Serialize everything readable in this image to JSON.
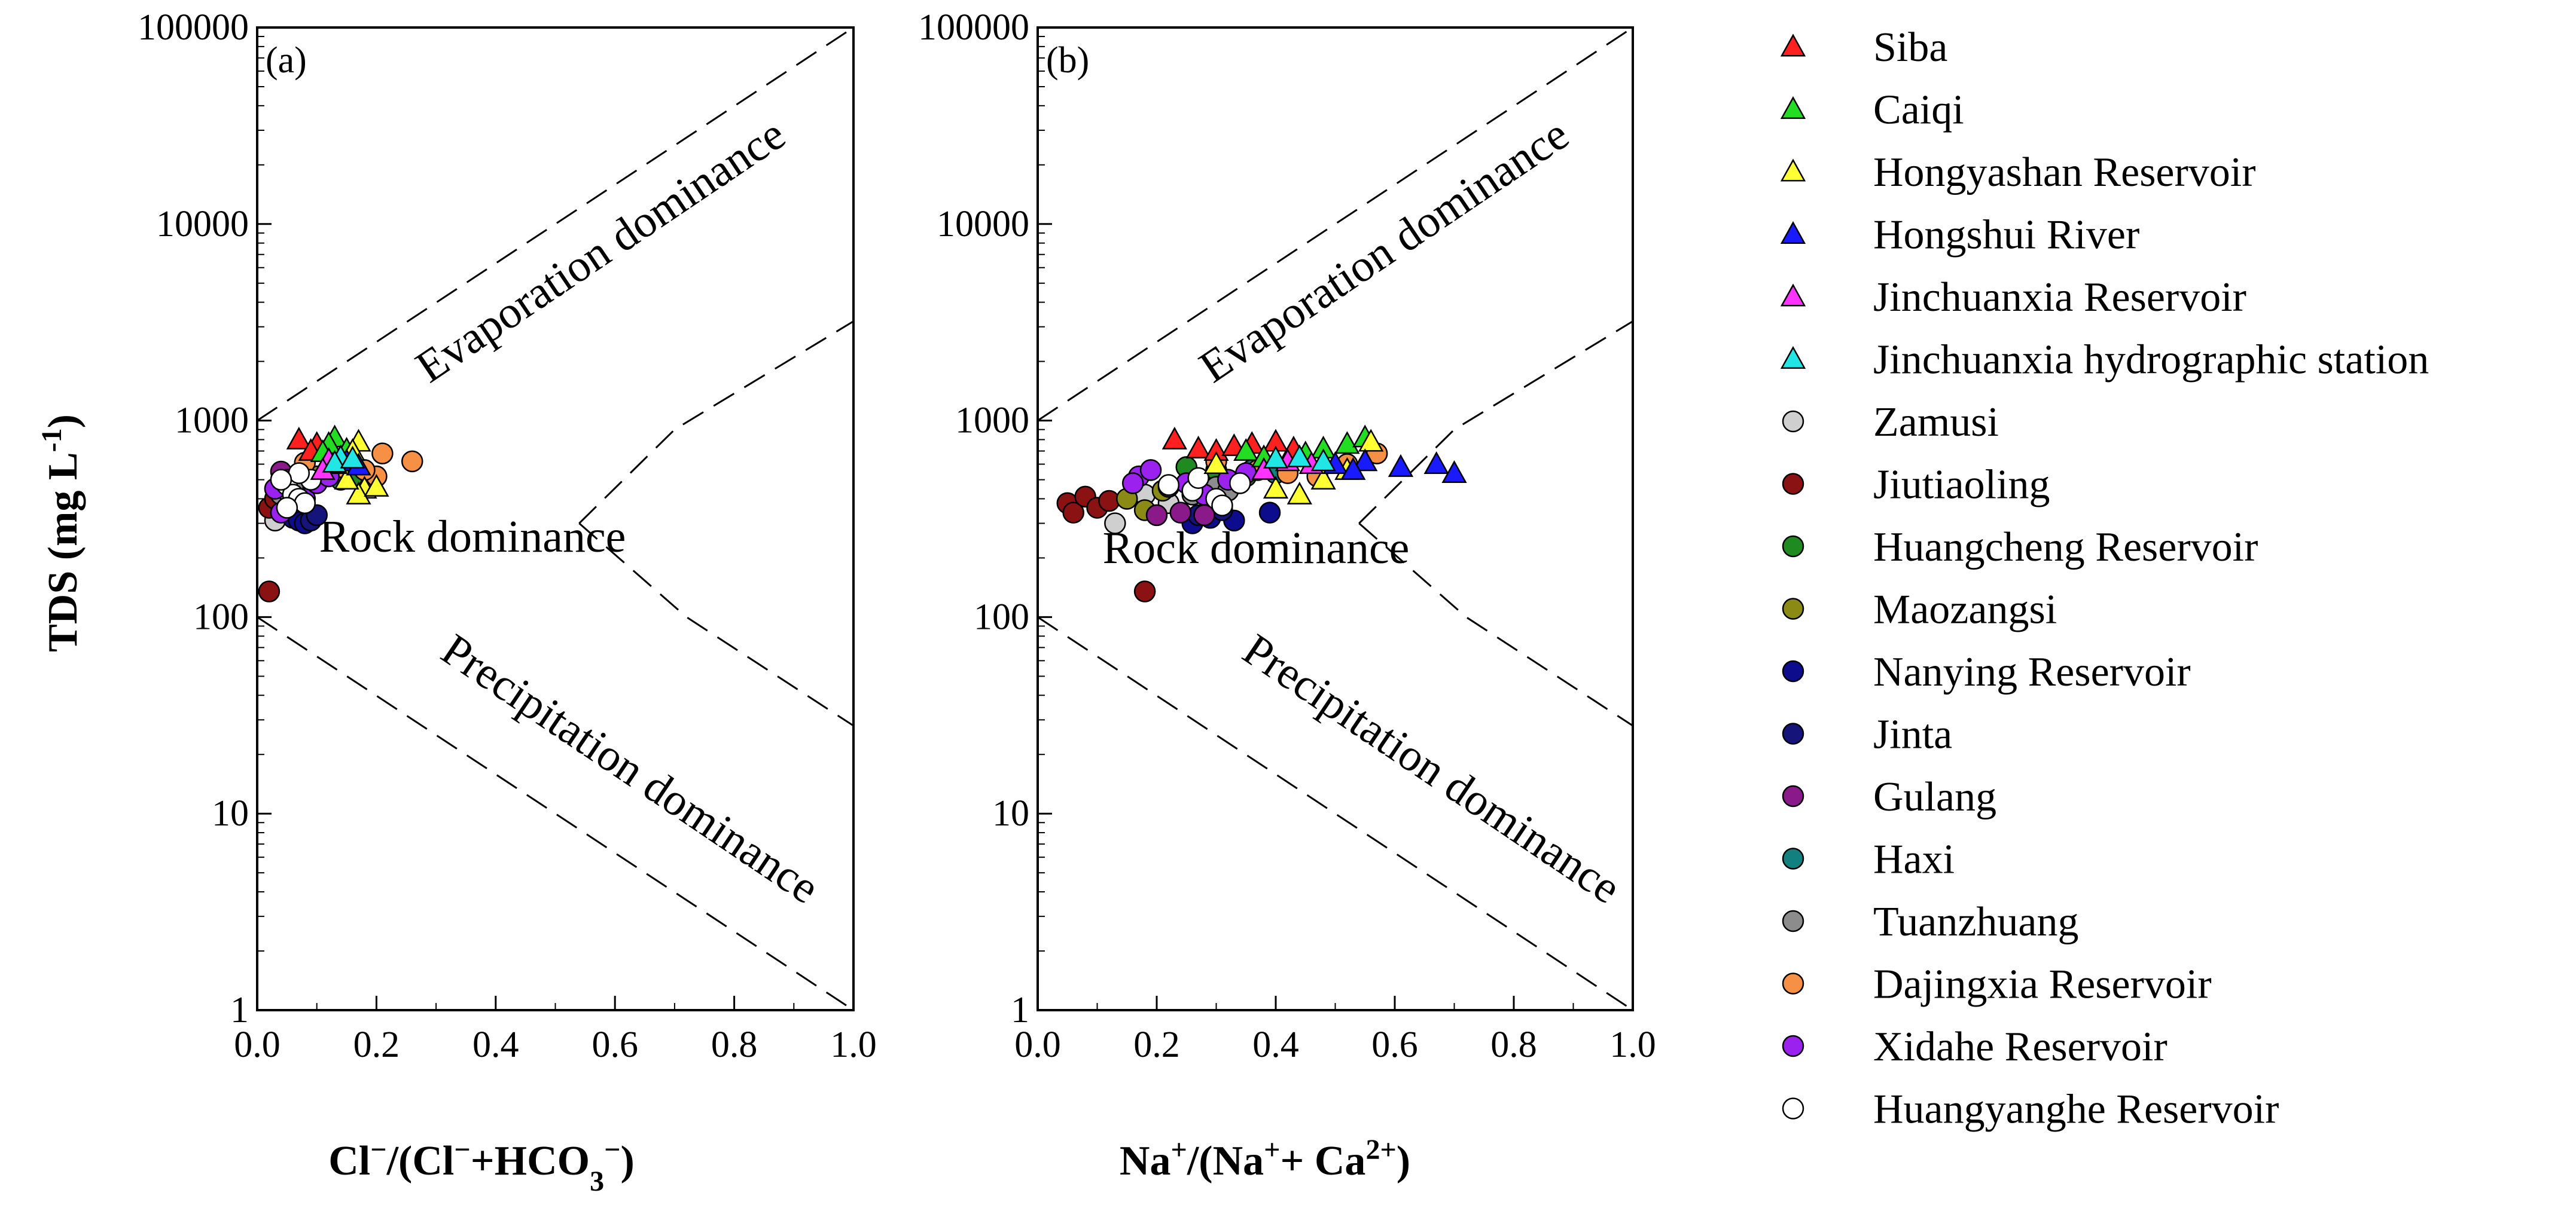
{
  "chart_data": [
    {
      "type": "scatter",
      "panel_label": "(a)",
      "xlabel": "Cl⁻/(Cl⁻+HCO₃⁻)",
      "ylabel": "TDS (mg L⁻¹)",
      "xlim": [
        0,
        1
      ],
      "ylim": [
        1,
        100000
      ],
      "yscale": "log",
      "x_ticks": [
        "0.0",
        "0.2",
        "0.4",
        "0.6",
        "0.8",
        "1.0"
      ],
      "y_ticks": [
        "1",
        "10",
        "100",
        "1000",
        "10000",
        "100000"
      ],
      "annotations": [
        "Evaporation dominance",
        "Rock dominance",
        "Precipitation dominance"
      ],
      "series": [
        {
          "name": "Siba",
          "points": [
            [
              0.07,
              800
            ],
            [
              0.1,
              760
            ],
            [
              0.12,
              720
            ],
            [
              0.15,
              690
            ],
            [
              0.09,
              700
            ],
            [
              0.13,
              650
            ]
          ]
        },
        {
          "name": "Caiqi",
          "points": [
            [
              0.13,
              820
            ],
            [
              0.12,
              760
            ],
            [
              0.15,
              710
            ],
            [
              0.11,
              690
            ]
          ]
        },
        {
          "name": "Hongyashan Reservoir",
          "points": [
            [
              0.17,
              780
            ],
            [
              0.16,
              700
            ],
            [
              0.18,
              450
            ],
            [
              0.17,
              420
            ],
            [
              0.2,
              460
            ],
            [
              0.15,
              500
            ]
          ]
        },
        {
          "name": "Hongshui River",
          "points": [
            [
              0.15,
              620
            ],
            [
              0.17,
              590
            ]
          ]
        },
        {
          "name": "Jinchuanxia Reservoir",
          "points": [
            [
              0.12,
              630
            ],
            [
              0.13,
              600
            ],
            [
              0.11,
              560
            ]
          ]
        },
        {
          "name": "Jinchuanxia hydrographic station",
          "points": [
            [
              0.14,
              650
            ],
            [
              0.13,
              610
            ],
            [
              0.16,
              640
            ]
          ]
        },
        {
          "name": "Zamusi",
          "points": [
            [
              0.03,
              310
            ],
            [
              0.04,
              350
            ],
            [
              0.05,
              380
            ]
          ]
        },
        {
          "name": "Jiutiaoling",
          "points": [
            [
              0.02,
              135
            ],
            [
              0.02,
              360
            ],
            [
              0.03,
              400
            ]
          ]
        },
        {
          "name": "Huangcheng Reservoir",
          "points": [
            [
              0.14,
              560
            ],
            [
              0.13,
              530
            ],
            [
              0.16,
              520
            ]
          ]
        },
        {
          "name": "Maozangsi",
          "points": [
            [
              0.1,
              520
            ],
            [
              0.08,
              480
            ]
          ]
        },
        {
          "name": "Nanying Reservoir",
          "points": [
            [
              0.06,
              320
            ],
            [
              0.07,
              310
            ],
            [
              0.09,
              330
            ],
            [
              0.08,
              300
            ]
          ]
        },
        {
          "name": "Jinta",
          "points": [
            [
              0.09,
              310
            ],
            [
              0.1,
              330
            ]
          ]
        },
        {
          "name": "Gulang",
          "points": [
            [
              0.04,
              550
            ],
            [
              0.05,
              500
            ]
          ]
        },
        {
          "name": "Haxi",
          "points": [
            [
              0.12,
              540
            ],
            [
              0.14,
              500
            ]
          ]
        },
        {
          "name": "Tuanzhuang",
          "points": [
            [
              0.04,
              420
            ],
            [
              0.06,
              460
            ],
            [
              0.05,
              440
            ]
          ]
        },
        {
          "name": "Dajingxia Reservoir",
          "points": [
            [
              0.21,
              680
            ],
            [
              0.26,
              620
            ],
            [
              0.2,
              520
            ],
            [
              0.18,
              560
            ],
            [
              0.08,
              610
            ],
            [
              0.14,
              580
            ]
          ]
        },
        {
          "name": "Xidahe Reservoir",
          "points": [
            [
              0.04,
              340
            ],
            [
              0.06,
              380
            ],
            [
              0.08,
              400
            ],
            [
              0.1,
              480
            ],
            [
              0.12,
              520
            ],
            [
              0.03,
              450
            ]
          ]
        },
        {
          "name": "Huangyanghe Reservoir",
          "points": [
            [
              0.05,
              470
            ],
            [
              0.06,
              420
            ],
            [
              0.07,
              400
            ],
            [
              0.08,
              380
            ],
            [
              0.05,
              360
            ],
            [
              0.09,
              500
            ],
            [
              0.07,
              540
            ],
            [
              0.04,
              500
            ]
          ]
        }
      ]
    },
    {
      "type": "scatter",
      "panel_label": "(b)",
      "xlabel": "Na⁺/(Na⁺+ Ca²⁺)",
      "ylabel": "",
      "xlim": [
        0,
        1
      ],
      "ylim": [
        1,
        100000
      ],
      "yscale": "log",
      "x_ticks": [
        "0.0",
        "0.2",
        "0.4",
        "0.6",
        "0.8",
        "1.0"
      ],
      "y_ticks": [
        "1",
        "10",
        "100",
        "1000",
        "10000",
        "100000"
      ],
      "annotations": [
        "Evaporation dominance",
        "Rock dominance",
        "Precipitation dominance"
      ],
      "series": [
        {
          "name": "Siba",
          "points": [
            [
              0.23,
              800
            ],
            [
              0.27,
              720
            ],
            [
              0.3,
              700
            ],
            [
              0.33,
              740
            ],
            [
              0.36,
              760
            ],
            [
              0.4,
              780
            ],
            [
              0.43,
              720
            ]
          ]
        },
        {
          "name": "Caiqi",
          "points": [
            [
              0.35,
              700
            ],
            [
              0.38,
              650
            ],
            [
              0.45,
              680
            ],
            [
              0.48,
              720
            ],
            [
              0.52,
              760
            ],
            [
              0.55,
              820
            ]
          ]
        },
        {
          "name": "Hongyashan Reservoir",
          "points": [
            [
              0.4,
              450
            ],
            [
              0.44,
              420
            ],
            [
              0.48,
              500
            ],
            [
              0.52,
              560
            ],
            [
              0.56,
              780
            ],
            [
              0.3,
              600
            ]
          ]
        },
        {
          "name": "Hongshui River",
          "points": [
            [
              0.55,
              620
            ],
            [
              0.61,
              580
            ],
            [
              0.67,
              600
            ],
            [
              0.7,
              540
            ],
            [
              0.5,
              600
            ],
            [
              0.53,
              560
            ]
          ]
        },
        {
          "name": "Jinchuanxia Reservoir",
          "points": [
            [
              0.42,
              620
            ],
            [
              0.46,
              600
            ],
            [
              0.38,
              560
            ]
          ]
        },
        {
          "name": "Jinchuanxia hydrographic station",
          "points": [
            [
              0.44,
              650
            ],
            [
              0.48,
              620
            ],
            [
              0.4,
              640
            ]
          ]
        },
        {
          "name": "Zamusi",
          "points": [
            [
              0.13,
              300
            ],
            [
              0.18,
              420
            ],
            [
              0.22,
              380
            ]
          ]
        },
        {
          "name": "Jiutiaoling",
          "points": [
            [
              0.05,
              380
            ],
            [
              0.06,
              340
            ],
            [
              0.08,
              410
            ],
            [
              0.1,
              360
            ],
            [
              0.12,
              390
            ],
            [
              0.18,
              135
            ]
          ]
        },
        {
          "name": "Huangcheng Reservoir",
          "points": [
            [
              0.25,
              580
            ],
            [
              0.3,
              560
            ],
            [
              0.35,
              520
            ]
          ]
        },
        {
          "name": "Maozangsi",
          "points": [
            [
              0.15,
              400
            ],
            [
              0.18,
              350
            ],
            [
              0.21,
              440
            ]
          ]
        },
        {
          "name": "Nanying Reservoir",
          "points": [
            [
              0.29,
              320
            ],
            [
              0.33,
              310
            ],
            [
              0.39,
              340
            ],
            [
              0.26,
              300
            ]
          ]
        },
        {
          "name": "Jinta",
          "points": [
            [
              0.27,
              330
            ],
            [
              0.31,
              350
            ]
          ]
        },
        {
          "name": "Gulang",
          "points": [
            [
              0.2,
              330
            ],
            [
              0.24,
              340
            ],
            [
              0.28,
              330
            ]
          ]
        },
        {
          "name": "Haxi",
          "points": [
            [
              0.36,
              560
            ],
            [
              0.4,
              540
            ]
          ]
        },
        {
          "name": "Tuanzhuang",
          "points": [
            [
              0.26,
              420
            ],
            [
              0.3,
              460
            ],
            [
              0.32,
              440
            ]
          ]
        },
        {
          "name": "Dajingxia Reservoir",
          "points": [
            [
              0.57,
              680
            ],
            [
              0.47,
              520
            ],
            [
              0.52,
              600
            ],
            [
              0.42,
              540
            ],
            [
              0.37,
              560
            ],
            [
              0.3,
              620
            ]
          ]
        },
        {
          "name": "Xidahe Reservoir",
          "points": [
            [
              0.17,
              520
            ],
            [
              0.19,
              560
            ],
            [
              0.22,
              460
            ],
            [
              0.25,
              480
            ],
            [
              0.28,
              420
            ],
            [
              0.32,
              500
            ],
            [
              0.35,
              540
            ],
            [
              0.16,
              480
            ]
          ]
        },
        {
          "name": "Huangyanghe Reservoir",
          "points": [
            [
              0.22,
              470
            ],
            [
              0.26,
              440
            ],
            [
              0.3,
              400
            ],
            [
              0.34,
              480
            ],
            [
              0.31,
              370
            ],
            [
              0.27,
              510
            ]
          ]
        }
      ]
    }
  ],
  "legend": [
    {
      "label": "Siba",
      "marker": "triangle",
      "color": "#ff2020"
    },
    {
      "label": "Caiqi",
      "marker": "triangle",
      "color": "#22dd22"
    },
    {
      "label": "Hongyashan Reservoir",
      "marker": "triangle",
      "color": "#ffff33"
    },
    {
      "label": "Hongshui River",
      "marker": "triangle",
      "color": "#1a1aff"
    },
    {
      "label": "Jinchuanxia Reservoir",
      "marker": "triangle",
      "color": "#ff33ff"
    },
    {
      "label": "Jinchuanxia hydrographic station",
      "marker": "triangle",
      "color": "#22e5e5"
    },
    {
      "label": "Zamusi",
      "marker": "circle",
      "color": "#cfcfcf"
    },
    {
      "label": "Jiutiaoling",
      "marker": "circle",
      "color": "#8b1212"
    },
    {
      "label": "Huangcheng Reservoir",
      "marker": "circle",
      "color": "#1f8a1f"
    },
    {
      "label": "Maozangsi",
      "marker": "circle",
      "color": "#8a8a14"
    },
    {
      "label": "Nanying Reservoir",
      "marker": "circle",
      "color": "#0c0c8c"
    },
    {
      "label": "Jinta",
      "marker": "circle",
      "color": "#14147a"
    },
    {
      "label": "Gulang",
      "marker": "circle",
      "color": "#8a1a8a"
    },
    {
      "label": "Haxi",
      "marker": "circle",
      "color": "#138080"
    },
    {
      "label": "Tuanzhuang",
      "marker": "circle",
      "color": "#8c8c8c"
    },
    {
      "label": "Dajingxia Reservoir",
      "marker": "circle",
      "color": "#f59045"
    },
    {
      "label": "Xidahe Reservoir",
      "marker": "circle",
      "color": "#9b22ee"
    },
    {
      "label": "Huangyanghe Reservoir",
      "marker": "circle",
      "color": "#ffffff"
    }
  ]
}
